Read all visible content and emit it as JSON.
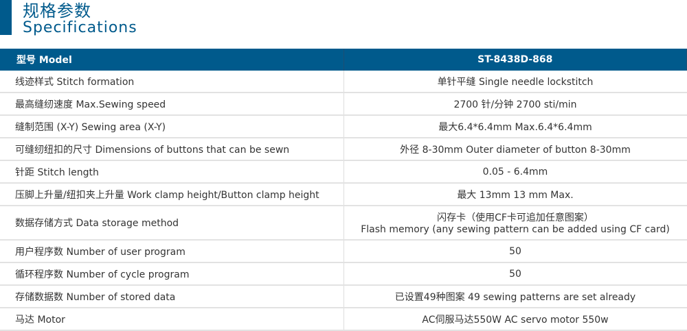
{
  "title": {
    "cn": "规格参数",
    "en": "Specifications"
  },
  "accent": "#005a8c",
  "header": {
    "label": "型号 Model",
    "value": "ST-8438D-868"
  },
  "rows": [
    {
      "label": "线迹样式 Stitch formation",
      "value": "单针平缝 Single needle lockstitch"
    },
    {
      "label": "最高缝纫速度 Max.Sewing speed",
      "value": "2700 针/分钟 2700 sti/min"
    },
    {
      "label": "缝制范围 (X-Y) Sewing area (X-Y)",
      "value": "最大6.4*6.4mm Max.6.4*6.4mm"
    },
    {
      "label": "可缝纫纽扣的尺寸 Dimensions of buttons that can be sewn",
      "value": "外径 8-30mm Outer diameter of button 8-30mm"
    },
    {
      "label": "针距 Stitch length",
      "value": "0.05 - 6.4mm"
    },
    {
      "label": "压脚上升量/纽扣夹上升量 Work clamp height/Button clamp height",
      "value": "最大 13mm 13 mm Max."
    },
    {
      "label": "数据存储方式 Data storage method",
      "value": "闪存卡（使用CF卡可追加任意图案）",
      "value2": "Flash memory (any sewing pattern can be added using CF card)"
    },
    {
      "label": "用户程序数 Number of user program",
      "value": "50"
    },
    {
      "label": "循环程序数 Number of cycle program",
      "value": "50"
    },
    {
      "label": "存储数据数 Number of stored data",
      "value": "已设置49种图案 49 sewing patterns are set already"
    },
    {
      "label": "马达 Motor",
      "value": "AC伺服马达550W AC servo motor 550w"
    }
  ]
}
